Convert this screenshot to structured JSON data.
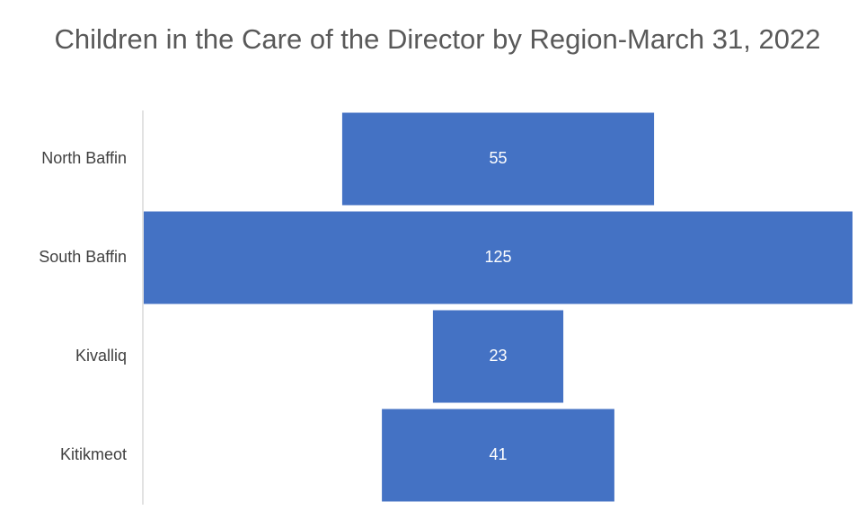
{
  "chart_data": {
    "type": "funnel",
    "title": "Children in the Care of the Director by Region-March 31, 2022",
    "categories": [
      "North Baffin",
      "South Baffin",
      "Kivalliq",
      "Kitikmeot"
    ],
    "values": [
      55,
      125,
      23,
      41
    ],
    "color": "#4472c4"
  }
}
